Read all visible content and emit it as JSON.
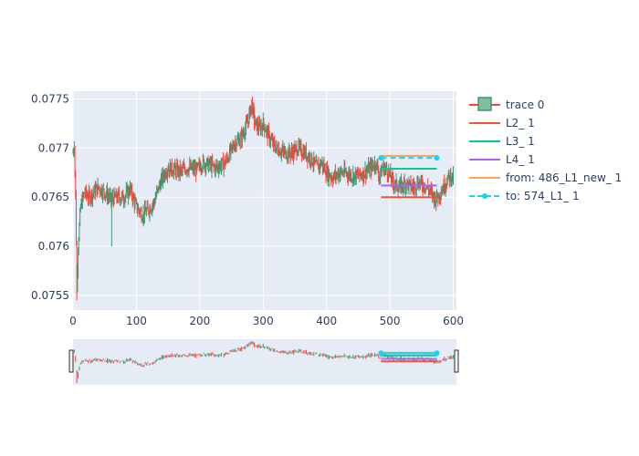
{
  "chart_data": {
    "type": "line",
    "subtype": "ohlc-candlestick-with-level-lines",
    "x_range": [
      0,
      605
    ],
    "y_range": [
      0.07535,
      0.07758
    ],
    "x_ticks": [
      0,
      100,
      200,
      300,
      400,
      500,
      600
    ],
    "y_ticks": [
      0.0755,
      0.076,
      0.0765,
      0.077,
      0.0775
    ],
    "y_tick_labels": [
      "0.0755",
      "0.076",
      "0.0765",
      "0.077",
      "0.0775"
    ],
    "grid": true,
    "legend_position": "top-right",
    "rangeslider": true,
    "colors": {
      "plot_bg": "#e5ecf6",
      "grid": "#ffffff",
      "axis_text": "#2a3f5f",
      "increasing": "#3d9970",
      "decreasing": "#ff4136",
      "L2": "#ef553b",
      "L3": "#00cc96",
      "L4": "#ab63fa",
      "from": "#ffa15a",
      "to": "#19d3f3"
    },
    "price_path": [
      [
        0,
        0.07695
      ],
      [
        2,
        0.07705
      ],
      [
        4,
        0.0765
      ],
      [
        6,
        0.0756
      ],
      [
        8,
        0.076
      ],
      [
        12,
        0.0764
      ],
      [
        18,
        0.07655
      ],
      [
        25,
        0.0765
      ],
      [
        32,
        0.07655
      ],
      [
        40,
        0.0766
      ],
      [
        50,
        0.07655
      ],
      [
        60,
        0.07648
      ],
      [
        70,
        0.0765
      ],
      [
        80,
        0.0765
      ],
      [
        90,
        0.07658
      ],
      [
        100,
        0.0764
      ],
      [
        110,
        0.07632
      ],
      [
        120,
        0.07638
      ],
      [
        128,
        0.07645
      ],
      [
        135,
        0.0766
      ],
      [
        145,
        0.07675
      ],
      [
        150,
        0.0768
      ],
      [
        160,
        0.07678
      ],
      [
        170,
        0.07676
      ],
      [
        180,
        0.0768
      ],
      [
        195,
        0.07678
      ],
      [
        205,
        0.07685
      ],
      [
        215,
        0.07683
      ],
      [
        225,
        0.0768
      ],
      [
        240,
        0.07685
      ],
      [
        255,
        0.07705
      ],
      [
        265,
        0.0771
      ],
      [
        275,
        0.07725
      ],
      [
        282,
        0.07745
      ],
      [
        287,
        0.07725
      ],
      [
        295,
        0.0772
      ],
      [
        300,
        0.07725
      ],
      [
        310,
        0.0771
      ],
      [
        320,
        0.077
      ],
      [
        335,
        0.07695
      ],
      [
        345,
        0.07695
      ],
      [
        355,
        0.077
      ],
      [
        365,
        0.07695
      ],
      [
        375,
        0.0769
      ],
      [
        385,
        0.0768
      ],
      [
        392,
        0.07685
      ],
      [
        400,
        0.07675
      ],
      [
        410,
        0.0767
      ],
      [
        420,
        0.07675
      ],
      [
        430,
        0.07675
      ],
      [
        440,
        0.07672
      ],
      [
        450,
        0.07672
      ],
      [
        460,
        0.07675
      ],
      [
        470,
        0.0768
      ],
      [
        478,
        0.07685
      ],
      [
        484,
        0.0767
      ],
      [
        488,
        0.0768
      ],
      [
        495,
        0.07678
      ],
      [
        505,
        0.07665
      ],
      [
        515,
        0.0766
      ],
      [
        525,
        0.07665
      ],
      [
        535,
        0.0766
      ],
      [
        545,
        0.07665
      ],
      [
        555,
        0.07662
      ],
      [
        565,
        0.07655
      ],
      [
        572,
        0.07648
      ],
      [
        580,
        0.07655
      ],
      [
        588,
        0.07665
      ],
      [
        595,
        0.07672
      ],
      [
        600,
        0.0767
      ]
    ],
    "series": [
      {
        "name": "trace 0",
        "kind": "candlestick",
        "legend_icon": "candle"
      },
      {
        "name": "L2_ 1",
        "kind": "line",
        "x": [
          486,
          574
        ],
        "y": [
          0.0765,
          0.0765
        ]
      },
      {
        "name": "L3_ 1",
        "kind": "line",
        "x": [
          486,
          574
        ],
        "y": [
          0.07679,
          0.07679
        ]
      },
      {
        "name": "L4_ 1",
        "kind": "line",
        "x": [
          486,
          574
        ],
        "y": [
          0.07662,
          0.07662
        ]
      },
      {
        "name": "from: 486_L1_new_ 1",
        "kind": "line",
        "x": [
          486,
          574
        ],
        "y": [
          0.07692,
          0.07692
        ]
      },
      {
        "name": "to: 574_L1_ 1",
        "kind": "line+markers",
        "x": [
          486,
          574
        ],
        "y": [
          0.0769,
          0.0769
        ]
      }
    ]
  }
}
